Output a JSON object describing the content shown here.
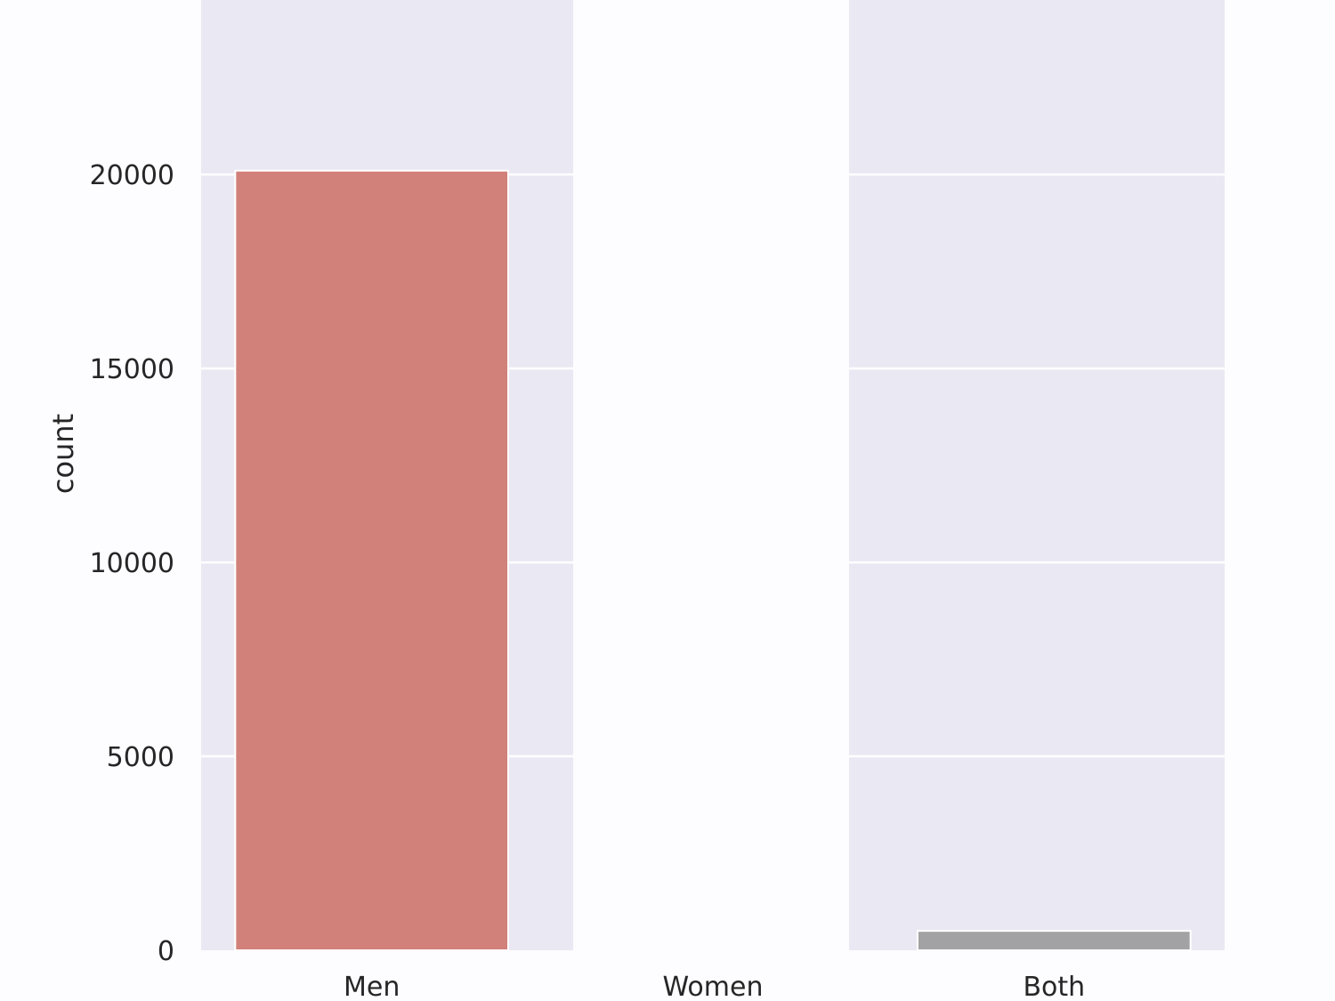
{
  "chart_data": {
    "type": "bar",
    "categories": [
      "Men",
      "Women",
      "Both"
    ],
    "values": [
      20100,
      0,
      500
    ],
    "xlabel": "",
    "ylabel": "count",
    "yticks": [
      0,
      5000,
      10000,
      15000,
      20000
    ],
    "ylim": [
      0,
      24500
    ],
    "grid": true,
    "colors": {
      "plot_background": "#eae8f2",
      "grid": "#ffffff",
      "bars": [
        "#d1807a",
        "#eea2b2",
        "#a2a1a3"
      ],
      "occluded_band": "#fdfcfe"
    },
    "note_band_category": "Women"
  }
}
